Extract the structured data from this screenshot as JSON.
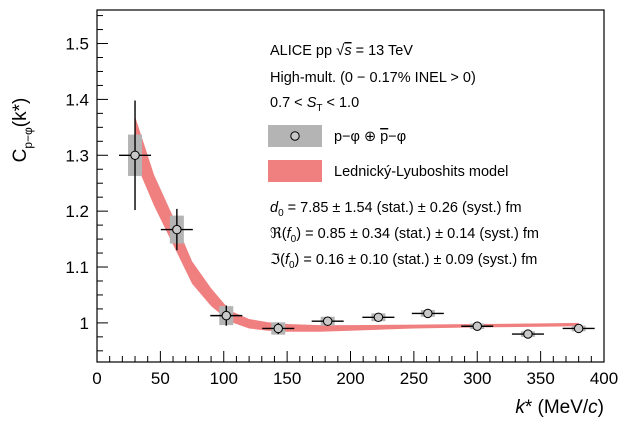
{
  "chart_data": {
    "type": "scatter",
    "xlabel": "k* (MeV/c)",
    "ylabel": "C_{p−φ}(k*)",
    "xlim": [
      0,
      400
    ],
    "ylim": [
      0.93,
      1.56
    ],
    "x_ticks": [
      0,
      50,
      100,
      150,
      200,
      250,
      300,
      350,
      400
    ],
    "y_ticks": [
      1.0,
      1.1,
      1.2,
      1.3,
      1.4,
      1.5
    ],
    "x_tick_labels": [
      "0",
      "50",
      "100",
      "150",
      "200",
      "250",
      "300",
      "350",
      "400"
    ],
    "y_tick_labels": [
      "1",
      "1.1",
      "1.2",
      "1.3",
      "1.4",
      "1.5"
    ],
    "annotations": {
      "system": "ALICE pp √s = 13 TeV",
      "multiplicity": "High-mult. (0 − 0.17% INEL > 0)",
      "sphericity": "0.7 < S_T < 1.0",
      "d0": "d_0 = 7.85 ± 1.54 (stat.) ± 0.26 (syst.) fm",
      "re_f0": "ℜ(f_0) = 0.85 ± 0.34 (stat.) ± 0.14 (syst.) fm",
      "im_f0": "ℑ(f_0) = 0.16 ± 0.10 (stat.) ± 0.09 (syst.) fm"
    },
    "legend": [
      {
        "label": "p−φ ⊕ p̄−φ",
        "kind": "data"
      },
      {
        "label": "Lednický-Lyuboshits model",
        "kind": "band"
      }
    ],
    "colors": {
      "model_band": "#f08080",
      "syst_box": "#b4b4b4",
      "marker_fill": "#c8c8c8",
      "stat_bar": "#000000"
    },
    "series": [
      {
        "kind": "data",
        "x": [
          30,
          63,
          102,
          143,
          182,
          222,
          261,
          300,
          340,
          380
        ],
        "y": [
          1.3,
          1.167,
          1.013,
          0.99,
          1.003,
          1.01,
          1.017,
          0.994,
          0.98,
          0.99
        ],
        "stat": [
          0.098,
          0.037,
          0.018,
          0.01,
          0.008,
          0.006,
          0.005,
          0.004,
          0.004,
          0.004
        ],
        "syst": [
          0.037,
          0.025,
          0.017,
          0.011,
          0.008,
          0.007,
          0.006,
          0.005,
          0.005,
          0.005
        ]
      },
      {
        "kind": "band",
        "x": [
          30,
          45,
          60,
          75,
          90,
          105,
          120,
          135,
          150,
          175,
          200,
          250,
          300,
          350,
          380
        ],
        "lower": [
          1.29,
          1.21,
          1.14,
          1.07,
          1.03,
          1.002,
          0.99,
          0.986,
          0.984,
          0.984,
          0.986,
          0.99,
          0.992,
          0.993,
          0.994
        ],
        "upper": [
          1.37,
          1.265,
          1.19,
          1.11,
          1.062,
          1.022,
          1.007,
          1.001,
          0.998,
          0.996,
          0.996,
          0.997,
          0.998,
          0.999,
          1.0
        ]
      }
    ]
  }
}
